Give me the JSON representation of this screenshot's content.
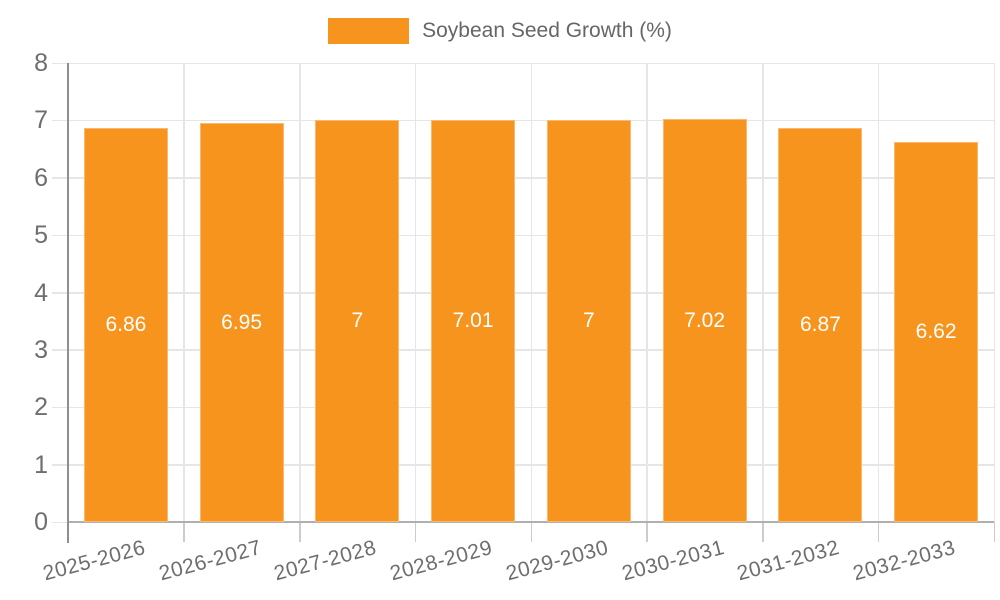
{
  "colors": {
    "bar": "#f7941e",
    "grid": "#e6e6e6",
    "y_axis": "#8f8f8f",
    "x_axis": "#b0b0b0",
    "tick": "#cccccc",
    "axis_text": "#6e6e6e",
    "bar_label_text": "#ffffff",
    "legend_text": "#666666",
    "background": "#ffffff"
  },
  "chart_data": {
    "type": "bar",
    "title": "",
    "legend": "Soybean Seed Growth (%)",
    "legend_position": "top-center",
    "categories": [
      "2025-2026",
      "2026-2027",
      "2027-2028",
      "2028-2029",
      "2029-2030",
      "2030-2031",
      "2031-2032",
      "2032-2033"
    ],
    "values": [
      6.86,
      6.95,
      7,
      7.01,
      7,
      7.02,
      6.87,
      6.62
    ],
    "value_labels": [
      "6.86",
      "6.95",
      "7",
      "7.01",
      "7",
      "7.02",
      "6.87",
      "6.62"
    ],
    "xlabel": "",
    "ylabel": "",
    "ylim": [
      0,
      8
    ],
    "yticks": [
      0,
      1,
      2,
      3,
      4,
      5,
      6,
      7,
      8
    ],
    "grid": true,
    "bar_color": "#f7941e"
  }
}
